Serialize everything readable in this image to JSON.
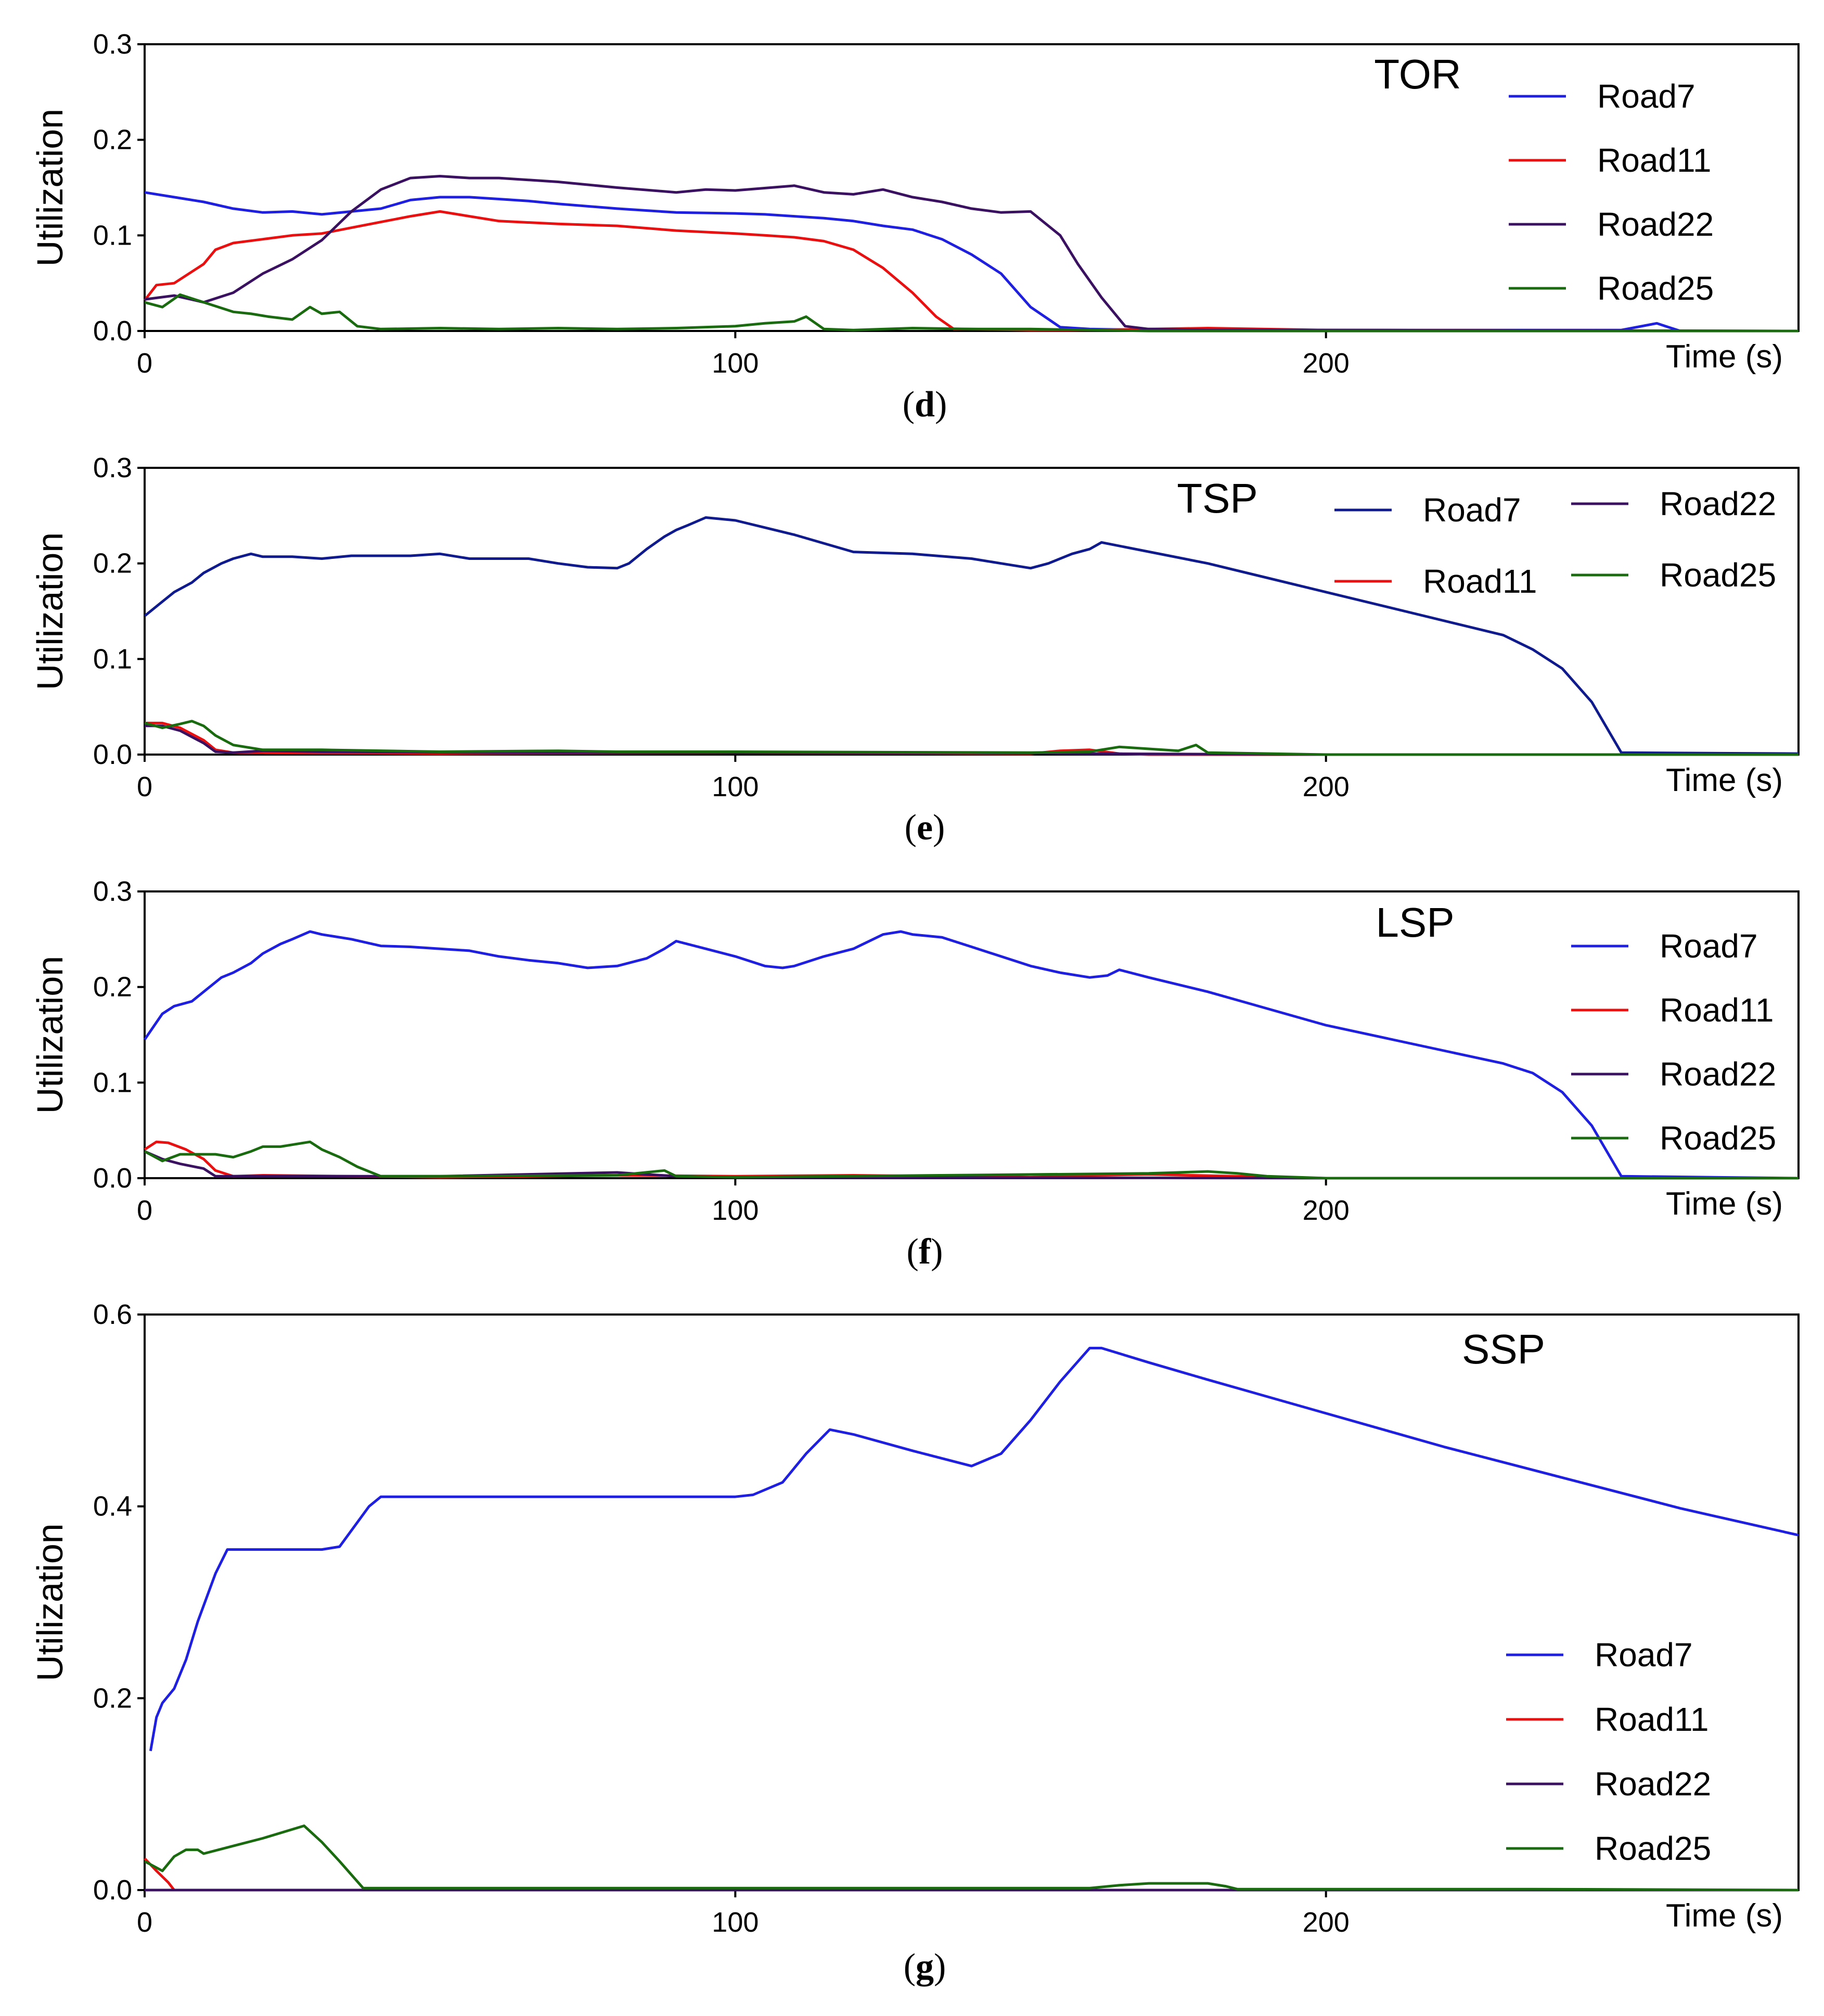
{
  "chart_data": [
    {
      "type": "line",
      "panel": "(d)",
      "panel_letter": "d",
      "title": "TOR",
      "xlabel": "Time (s)",
      "ylabel": "Utilization",
      "xlim": [
        0,
        280
      ],
      "ylim": [
        0,
        0.3
      ],
      "xticks": [
        0,
        100,
        200
      ],
      "yticks": [
        "0.0",
        "0.1",
        "0.2",
        "0.3"
      ],
      "legend_position": "top-right",
      "series": [
        {
          "name": "Road7",
          "color": "#1f1fe0",
          "x": [
            0,
            5,
            10,
            15,
            20,
            25,
            30,
            35,
            40,
            45,
            50,
            55,
            60,
            65,
            70,
            80,
            90,
            100,
            105,
            110,
            115,
            120,
            125,
            130,
            135,
            140,
            145,
            150,
            155,
            160,
            170,
            180,
            200,
            250,
            256,
            258,
            260,
            280
          ],
          "y": [
            0.145,
            0.14,
            0.135,
            0.128,
            0.124,
            0.125,
            0.122,
            0.125,
            0.128,
            0.137,
            0.14,
            0.14,
            0.138,
            0.136,
            0.133,
            0.128,
            0.124,
            0.123,
            0.122,
            0.12,
            0.118,
            0.115,
            0.11,
            0.106,
            0.096,
            0.08,
            0.06,
            0.025,
            0.004,
            0.002,
            0.001,
            0.001,
            0.001,
            0.001,
            0.008,
            0.004,
            0.0,
            0.0
          ]
        },
        {
          "name": "Road11",
          "color": "#e81010",
          "x": [
            0,
            2,
            5,
            10,
            12,
            15,
            20,
            25,
            30,
            35,
            40,
            45,
            50,
            55,
            60,
            70,
            80,
            90,
            100,
            105,
            110,
            115,
            120,
            125,
            130,
            134,
            137,
            140,
            150,
            160,
            170,
            180,
            200,
            280
          ],
          "y": [
            0.032,
            0.048,
            0.05,
            0.07,
            0.085,
            0.092,
            0.096,
            0.1,
            0.102,
            0.108,
            0.114,
            0.12,
            0.125,
            0.12,
            0.115,
            0.112,
            0.11,
            0.105,
            0.102,
            0.1,
            0.098,
            0.094,
            0.085,
            0.066,
            0.04,
            0.015,
            0.002,
            0.002,
            0.001,
            0.001,
            0.002,
            0.003,
            0.001,
            0.0
          ]
        },
        {
          "name": "Road22",
          "color": "#3a1060",
          "x": [
            0,
            5,
            10,
            15,
            20,
            25,
            30,
            35,
            40,
            45,
            50,
            55,
            60,
            70,
            80,
            90,
            95,
            100,
            110,
            115,
            120,
            125,
            130,
            135,
            140,
            145,
            150,
            155,
            158,
            162,
            166,
            170,
            180,
            200,
            280
          ],
          "y": [
            0.033,
            0.037,
            0.03,
            0.04,
            0.06,
            0.075,
            0.095,
            0.125,
            0.148,
            0.16,
            0.162,
            0.16,
            0.16,
            0.156,
            0.15,
            0.145,
            0.148,
            0.147,
            0.152,
            0.145,
            0.143,
            0.148,
            0.14,
            0.135,
            0.128,
            0.124,
            0.125,
            0.1,
            0.07,
            0.035,
            0.005,
            0.002,
            0.001,
            0.001,
            0.0
          ]
        },
        {
          "name": "Road25",
          "color": "#1a6a10",
          "x": [
            0,
            3,
            6,
            10,
            15,
            18,
            21,
            25,
            28,
            30,
            33,
            36,
            40,
            50,
            60,
            70,
            80,
            90,
            100,
            105,
            110,
            112,
            115,
            120,
            130,
            140,
            150,
            160,
            170,
            200,
            280
          ],
          "y": [
            0.03,
            0.025,
            0.038,
            0.03,
            0.02,
            0.018,
            0.015,
            0.012,
            0.025,
            0.018,
            0.02,
            0.005,
            0.002,
            0.003,
            0.002,
            0.003,
            0.002,
            0.003,
            0.005,
            0.008,
            0.01,
            0.015,
            0.002,
            0.001,
            0.003,
            0.002,
            0.002,
            0.001,
            0.0,
            0.0,
            0.0
          ]
        }
      ]
    },
    {
      "type": "line",
      "panel": "(e)",
      "panel_letter": "e",
      "title": "TSP",
      "xlabel": "Time (s)",
      "ylabel": "Utilization",
      "xlim": [
        0,
        280
      ],
      "ylim": [
        0,
        0.3
      ],
      "xticks": [
        0,
        100,
        200
      ],
      "yticks": [
        "0.0",
        "0.1",
        "0.2",
        "0.3"
      ],
      "legend_position": "top-right",
      "series": [
        {
          "name": "Road7",
          "color": "#0f1a8c",
          "x": [
            0,
            3,
            5,
            8,
            10,
            13,
            15,
            18,
            20,
            25,
            30,
            35,
            40,
            45,
            50,
            55,
            60,
            65,
            70,
            75,
            80,
            82,
            85,
            88,
            90,
            92,
            95,
            100,
            110,
            120,
            130,
            140,
            145,
            150,
            153,
            157,
            160,
            162,
            180,
            200,
            230,
            235,
            240,
            245,
            250,
            280
          ],
          "y": [
            0.145,
            0.16,
            0.17,
            0.18,
            0.19,
            0.2,
            0.205,
            0.21,
            0.207,
            0.207,
            0.205,
            0.208,
            0.208,
            0.208,
            0.21,
            0.205,
            0.205,
            0.205,
            0.2,
            0.196,
            0.195,
            0.2,
            0.215,
            0.228,
            0.235,
            0.24,
            0.248,
            0.245,
            0.23,
            0.212,
            0.21,
            0.205,
            0.2,
            0.195,
            0.2,
            0.21,
            0.215,
            0.222,
            0.2,
            0.17,
            0.125,
            0.11,
            0.09,
            0.055,
            0.002,
            0.001
          ]
        },
        {
          "name": "Road11",
          "color": "#e81010",
          "x": [
            0,
            3,
            6,
            10,
            12,
            15,
            20,
            50,
            100,
            150,
            155,
            160,
            165,
            170,
            200,
            280
          ],
          "y": [
            0.033,
            0.033,
            0.028,
            0.015,
            0.005,
            0.002,
            0.002,
            0.001,
            0.002,
            0.001,
            0.004,
            0.005,
            0.001,
            0.0,
            0.0,
            0.0
          ]
        },
        {
          "name": "Road22",
          "color": "#3a1060",
          "x": [
            0,
            3,
            6,
            10,
            12,
            15,
            20,
            30,
            60,
            80,
            100,
            140,
            160,
            200,
            280
          ],
          "y": [
            0.03,
            0.03,
            0.025,
            0.012,
            0.003,
            0.002,
            0.004,
            0.003,
            0.002,
            0.002,
            0.002,
            0.002,
            0.001,
            0.0,
            0.0
          ]
        },
        {
          "name": "Road25",
          "color": "#1a6a10",
          "x": [
            0,
            3,
            6,
            8,
            10,
            12,
            15,
            20,
            30,
            50,
            70,
            80,
            100,
            150,
            160,
            165,
            170,
            175,
            178,
            180,
            200,
            280
          ],
          "y": [
            0.033,
            0.028,
            0.032,
            0.035,
            0.03,
            0.02,
            0.01,
            0.005,
            0.005,
            0.003,
            0.004,
            0.003,
            0.003,
            0.002,
            0.003,
            0.008,
            0.006,
            0.004,
            0.01,
            0.002,
            0.0,
            0.0
          ]
        }
      ]
    },
    {
      "type": "line",
      "panel": "(f)",
      "panel_letter": "f",
      "title": "LSP",
      "xlabel": "Time (s)",
      "ylabel": "Utilization",
      "xlim": [
        0,
        280
      ],
      "ylim": [
        0,
        0.3
      ],
      "xticks": [
        0,
        100,
        200
      ],
      "yticks": [
        "0.0",
        "0.1",
        "0.2",
        "0.3"
      ],
      "legend_position": "top-right",
      "series": [
        {
          "name": "Road7",
          "color": "#1f1fe0",
          "x": [
            0,
            3,
            5,
            8,
            10,
            13,
            15,
            18,
            20,
            23,
            25,
            28,
            30,
            35,
            40,
            45,
            50,
            55,
            60,
            65,
            70,
            75,
            80,
            85,
            88,
            90,
            95,
            100,
            105,
            108,
            110,
            115,
            120,
            125,
            128,
            130,
            135,
            140,
            145,
            150,
            155,
            160,
            163,
            165,
            170,
            180,
            200,
            230,
            235,
            240,
            245,
            250,
            280
          ],
          "y": [
            0.145,
            0.172,
            0.18,
            0.185,
            0.195,
            0.21,
            0.215,
            0.225,
            0.235,
            0.245,
            0.25,
            0.258,
            0.255,
            0.25,
            0.243,
            0.242,
            0.24,
            0.238,
            0.232,
            0.228,
            0.225,
            0.22,
            0.222,
            0.23,
            0.24,
            0.248,
            0.24,
            0.232,
            0.222,
            0.22,
            0.222,
            0.232,
            0.24,
            0.255,
            0.258,
            0.255,
            0.252,
            0.242,
            0.232,
            0.222,
            0.215,
            0.21,
            0.212,
            0.218,
            0.21,
            0.195,
            0.16,
            0.12,
            0.11,
            0.09,
            0.055,
            0.002,
            0.0
          ]
        },
        {
          "name": "Road11",
          "color": "#e81010",
          "x": [
            0,
            2,
            4,
            7,
            10,
            12,
            15,
            20,
            50,
            80,
            100,
            120,
            150,
            160,
            170,
            200,
            280
          ],
          "y": [
            0.03,
            0.038,
            0.037,
            0.03,
            0.02,
            0.008,
            0.002,
            0.003,
            0.001,
            0.003,
            0.002,
            0.003,
            0.001,
            0.003,
            0.004,
            0.0,
            0.0
          ]
        },
        {
          "name": "Road22",
          "color": "#3a1060",
          "x": [
            0,
            3,
            6,
            10,
            12,
            15,
            20,
            50,
            80,
            90,
            100,
            200,
            280
          ],
          "y": [
            0.028,
            0.02,
            0.015,
            0.01,
            0.002,
            0.002,
            0.002,
            0.002,
            0.006,
            0.002,
            0.001,
            0.0,
            0.0
          ]
        },
        {
          "name": "Road25",
          "color": "#1a6a10",
          "x": [
            0,
            3,
            6,
            10,
            12,
            15,
            18,
            20,
            23,
            25,
            28,
            30,
            33,
            36,
            40,
            50,
            80,
            88,
            90,
            100,
            170,
            175,
            180,
            185,
            190,
            200,
            280
          ],
          "y": [
            0.028,
            0.018,
            0.025,
            0.025,
            0.025,
            0.022,
            0.028,
            0.033,
            0.033,
            0.035,
            0.038,
            0.03,
            0.022,
            0.012,
            0.002,
            0.002,
            0.003,
            0.008,
            0.002,
            0.001,
            0.005,
            0.006,
            0.007,
            0.005,
            0.002,
            0.0,
            0.0
          ]
        }
      ]
    },
    {
      "type": "line",
      "panel": "(g)",
      "panel_letter": "g",
      "title": "SSP",
      "xlabel": "Time (s)",
      "ylabel": "Utilization",
      "xlim": [
        0,
        280
      ],
      "ylim": [
        0,
        0.6
      ],
      "xticks": [
        0,
        100,
        200
      ],
      "yticks": [
        "0.0",
        "0.2",
        "0.4",
        "0.6"
      ],
      "legend_position": "bottom-right",
      "series": [
        {
          "name": "Road7",
          "color": "#1f1fe0",
          "x": [
            1,
            2,
            3,
            5,
            7,
            9,
            12,
            14,
            20,
            30,
            33,
            38,
            40,
            45,
            60,
            80,
            100,
            103,
            108,
            112,
            116,
            120,
            130,
            140,
            145,
            150,
            155,
            160,
            162,
            170,
            180,
            200,
            220,
            240,
            260,
            280
          ],
          "y": [
            0.145,
            0.18,
            0.195,
            0.21,
            0.24,
            0.28,
            0.33,
            0.355,
            0.355,
            0.355,
            0.358,
            0.4,
            0.41,
            0.41,
            0.41,
            0.41,
            0.41,
            0.412,
            0.425,
            0.455,
            0.48,
            0.475,
            0.458,
            0.442,
            0.455,
            0.49,
            0.53,
            0.565,
            0.565,
            0.55,
            0.532,
            0.497,
            0.462,
            0.43,
            0.398,
            0.37
          ]
        },
        {
          "name": "Road11",
          "color": "#e81010",
          "x": [
            0,
            2,
            4,
            5,
            10,
            50,
            280
          ],
          "y": [
            0.033,
            0.02,
            0.008,
            0.0,
            0.0,
            0.0,
            0.0
          ]
        },
        {
          "name": "Road22",
          "color": "#3a1060",
          "x": [
            0,
            5,
            50,
            150,
            280
          ],
          "y": [
            0.0,
            0.0,
            0.0,
            0.0,
            0.0
          ]
        },
        {
          "name": "Road25",
          "color": "#1a6a10",
          "x": [
            0,
            3,
            5,
            7,
            9,
            10,
            15,
            20,
            27,
            30,
            33,
            37,
            40,
            60,
            80,
            100,
            150,
            160,
            165,
            170,
            180,
            183,
            185,
            200,
            235,
            280
          ],
          "y": [
            0.03,
            0.02,
            0.035,
            0.042,
            0.042,
            0.038,
            0.046,
            0.054,
            0.067,
            0.05,
            0.03,
            0.002,
            0.002,
            0.002,
            0.002,
            0.002,
            0.002,
            0.002,
            0.005,
            0.007,
            0.007,
            0.004,
            0.001,
            0.001,
            0.001,
            0.0
          ]
        }
      ]
    }
  ]
}
